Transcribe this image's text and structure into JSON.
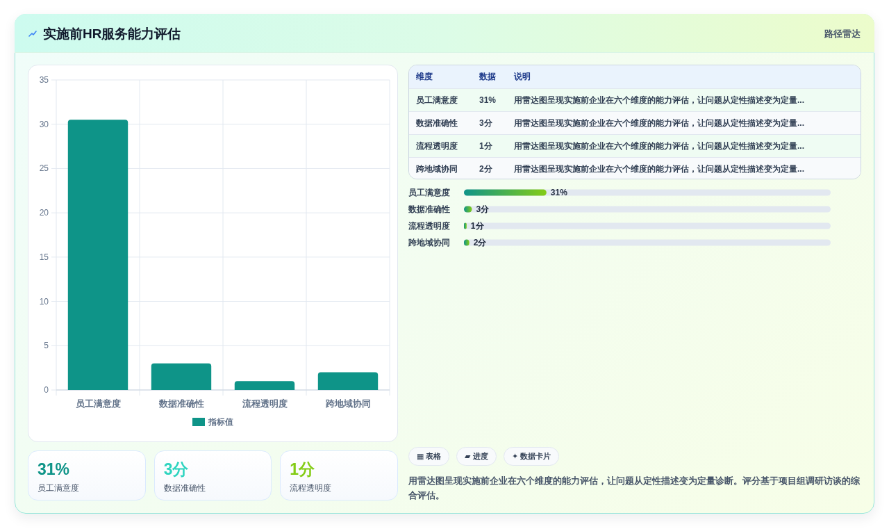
{
  "chart_data": [
    {
      "type": "other",
      "title": "实施前HR服务能力评估",
      "subtitle": "路径雷达"
    },
    {
      "type": "bar",
      "categories": [
        "员工满意度",
        "数据准确性",
        "流程透明度",
        "跨地域协同"
      ],
      "series": [
        {
          "name": "指标值",
          "color": "#0e9488",
          "values": [
            30.5,
            3,
            1,
            2
          ]
        }
      ],
      "ylim": [
        0,
        35
      ],
      "yticks": [
        0,
        5,
        10,
        15,
        20,
        25,
        30,
        35
      ],
      "grid": true,
      "legend": "bottom"
    },
    {
      "type": "other",
      "annotations": [
        "31%",
        "员工满意度",
        "3分",
        "数据准确性",
        "1分",
        "流程透明度"
      ],
      "colors": [
        "#0f9488",
        "#2dd4bf",
        "#84cc16"
      ]
    },
    {
      "type": "other",
      "annotations": [
        "维度",
        "数据",
        "说明",
        "员工满意度",
        "31%",
        "用雷达图呈现实施前企业在六个维度的能力评估，让问题从定性描述变为定量...",
        "数据准确性",
        "3分",
        "用雷达图呈现实施前企业在六个维度的能力评估，让问题从定性描述变为定量...",
        "流程透明度",
        "1分",
        "用雷达图呈现实施前企业在六个维度的能力评估，让问题从定性描述变为定量...",
        "跨地域协同",
        "2分",
        "用雷达图呈现实施前企业在六个维度的能力评估，让问题从定性描述变为定量..."
      ]
    },
    {
      "type": "bar",
      "orientation": "horizontal",
      "categories": [
        "员工满意度",
        "数据准确性",
        "流程透明度",
        "跨地域协同"
      ],
      "values": [
        31,
        3,
        1,
        2
      ],
      "value_labels": [
        "31%",
        "3分",
        "1分",
        "2分"
      ],
      "color": "#0f9488",
      "tick_labels": "y"
    },
    {
      "type": "other",
      "annotations": [
        "▦ 表格",
        "▰ 进度",
        "✦ 数据卡片",
        "用雷达图呈现实施前企业在六个维度的能力评估，让问题从定性描述变为定量诊断。评分基于项目组调研访谈的综合评估。"
      ]
    }
  ]
}
